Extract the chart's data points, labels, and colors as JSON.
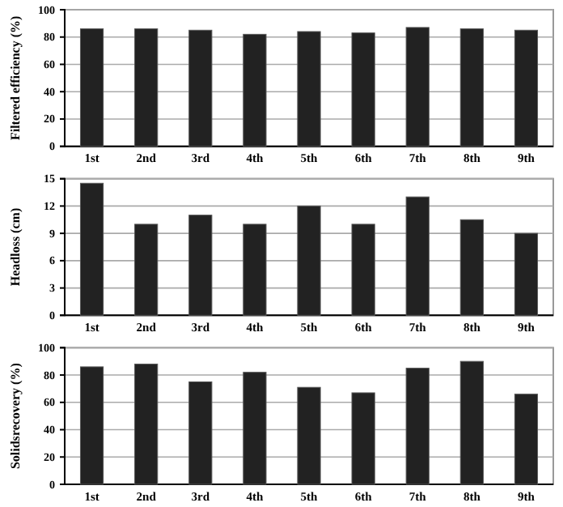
{
  "chart_data": [
    {
      "type": "bar",
      "ylabel": "Filtered efficiency (%)",
      "categories": [
        "1st",
        "2nd",
        "3rd",
        "4th",
        "5th",
        "6th",
        "7th",
        "8th",
        "9th"
      ],
      "series": [
        {
          "color": "#222222",
          "values": [
            86,
            86,
            85,
            82,
            84,
            83,
            87,
            86,
            85
          ]
        }
      ],
      "ylim": [
        0,
        100
      ],
      "yticks": [
        0,
        20,
        40,
        60,
        80,
        100
      ],
      "grid": "y"
    },
    {
      "type": "bar",
      "ylabel": "Headloss (cm)",
      "categories": [
        "1st",
        "2nd",
        "3rd",
        "4th",
        "5th",
        "6th",
        "7th",
        "8th",
        "9th"
      ],
      "series": [
        {
          "color": "#222222",
          "values": [
            14.5,
            10,
            11,
            10,
            12,
            10,
            13,
            10.5,
            9
          ]
        }
      ],
      "ylim": [
        0,
        15
      ],
      "yticks": [
        0,
        3,
        6,
        9,
        12,
        15
      ],
      "grid": "y"
    },
    {
      "type": "bar",
      "ylabel": "Solidsrecovery (%)",
      "categories": [
        "1st",
        "2nd",
        "3rd",
        "4th",
        "5th",
        "6th",
        "7th",
        "8th",
        "9th"
      ],
      "series": [
        {
          "color": "#222222",
          "values": [
            86,
            88,
            75,
            82,
            71,
            67,
            85,
            90,
            66
          ]
        }
      ],
      "ylim": [
        0,
        100
      ],
      "yticks": [
        0,
        20,
        40,
        60,
        80,
        100
      ],
      "grid": "y"
    }
  ]
}
